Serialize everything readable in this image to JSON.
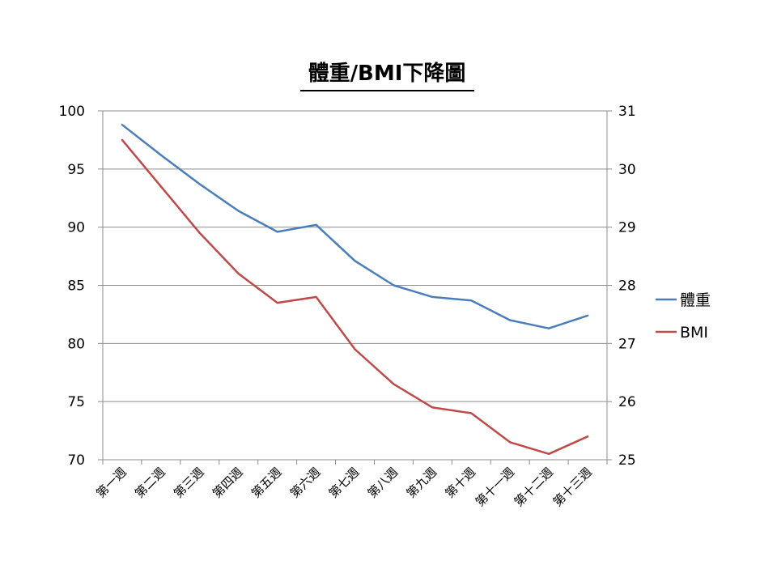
{
  "chart_data": {
    "type": "line",
    "title": "體重/BMI下降圖",
    "categories": [
      "第一週",
      "第二週",
      "第三週",
      "第四週",
      "第五週",
      "第六週",
      "第七週",
      "第八週",
      "第九週",
      "第十週",
      "第十一週",
      "第十二週",
      "第十三週"
    ],
    "y_left": {
      "ylim": [
        70,
        100
      ],
      "ticks": [
        "70",
        "75",
        "80",
        "85",
        "90",
        "95",
        "100"
      ]
    },
    "y_right": {
      "ylim": [
        25,
        31
      ],
      "ticks": [
        "25",
        "26",
        "27",
        "28",
        "29",
        "30",
        "31"
      ]
    },
    "grid": true,
    "legend_position": "right",
    "series": [
      {
        "name": "體重",
        "axis": "left",
        "color": "#4a7ebb",
        "values": [
          98.8,
          96.2,
          93.7,
          91.4,
          89.6,
          90.2,
          87.1,
          85.0,
          84.0,
          83.7,
          82.0,
          81.3,
          82.4
        ]
      },
      {
        "name": "BMI",
        "axis": "right",
        "color": "#be4b48",
        "values": [
          30.5,
          29.7,
          28.9,
          28.2,
          27.7,
          27.8,
          26.9,
          26.3,
          25.9,
          25.8,
          25.3,
          25.1,
          25.4
        ]
      }
    ]
  }
}
